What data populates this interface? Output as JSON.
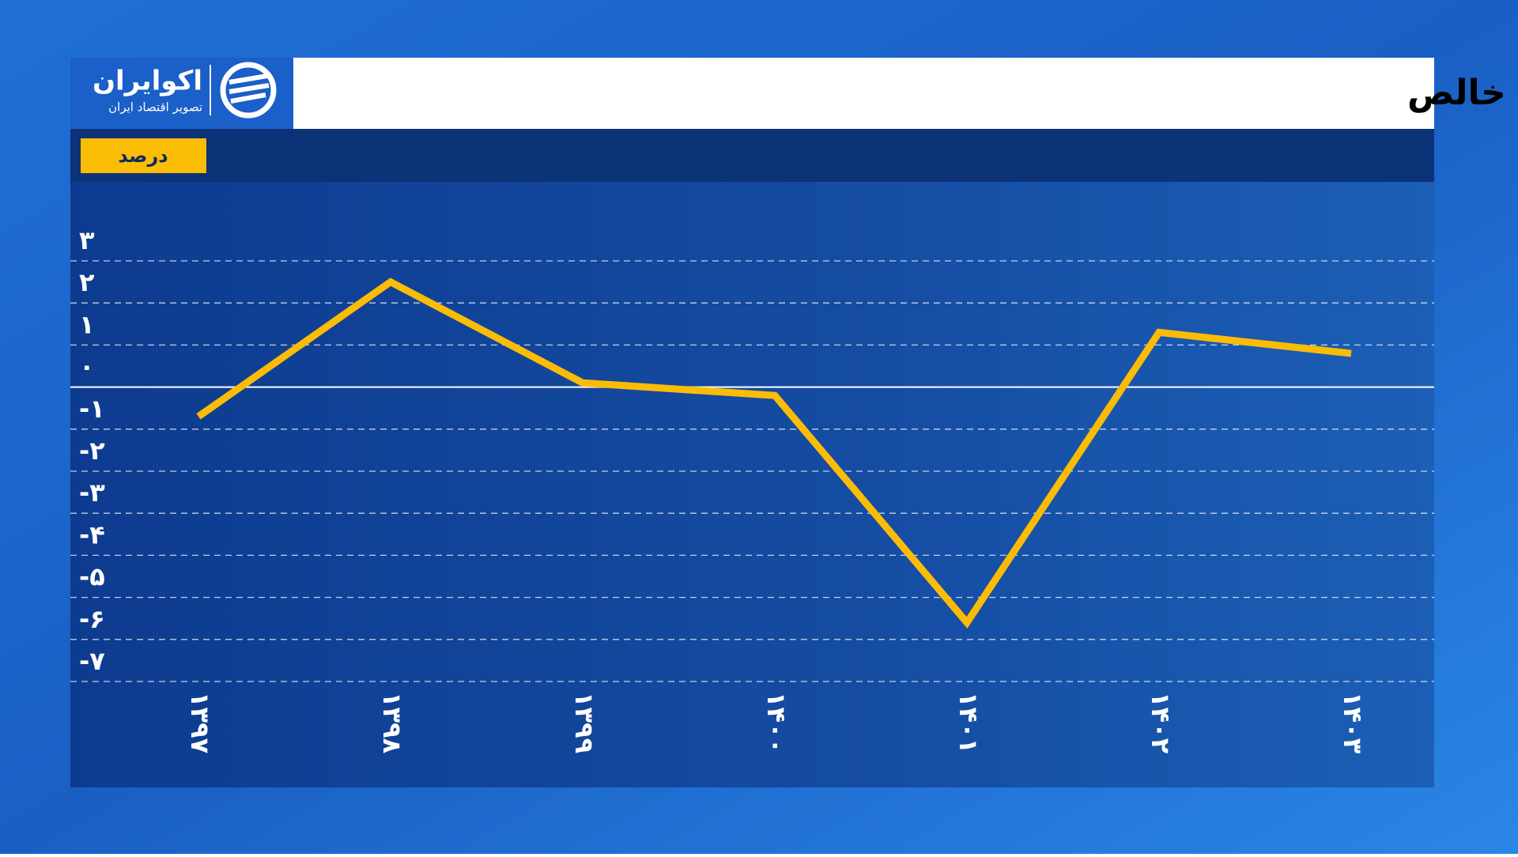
{
  "brand": {
    "name": "اکوایران",
    "tagline": "تصویر اقتصاد ایران"
  },
  "chart_data": {
    "type": "line",
    "title": "رشد تشکیل سرمایه ثابت خالص",
    "unit_label": "درصد",
    "categories": [
      "۱۳۹۷",
      "۱۳۹۸",
      "۱۳۹۹",
      "۱۴۰۰",
      "۱۴۰۱",
      "۱۴۰۲",
      "۱۴۰۳"
    ],
    "series": [
      {
        "name": "رشد تشکیل سرمایه ثابت خالص",
        "color": "#fbbc05",
        "values": [
          -0.7,
          2.5,
          0.1,
          -0.2,
          -5.6,
          1.3,
          0.8
        ]
      }
    ],
    "ylim": [
      -7,
      3
    ],
    "yticks": [
      {
        "value": 3,
        "label": "۳"
      },
      {
        "value": 2,
        "label": "۲"
      },
      {
        "value": 1,
        "label": "۱"
      },
      {
        "value": 0,
        "label": "۰"
      },
      {
        "value": -1,
        "label": "-۱"
      },
      {
        "value": -2,
        "label": "-۲"
      },
      {
        "value": -3,
        "label": "-۳"
      },
      {
        "value": -4,
        "label": "-۴"
      },
      {
        "value": -5,
        "label": "-۵"
      },
      {
        "value": -6,
        "label": "-۶"
      },
      {
        "value": -7,
        "label": "-۷"
      }
    ],
    "grid": true
  }
}
